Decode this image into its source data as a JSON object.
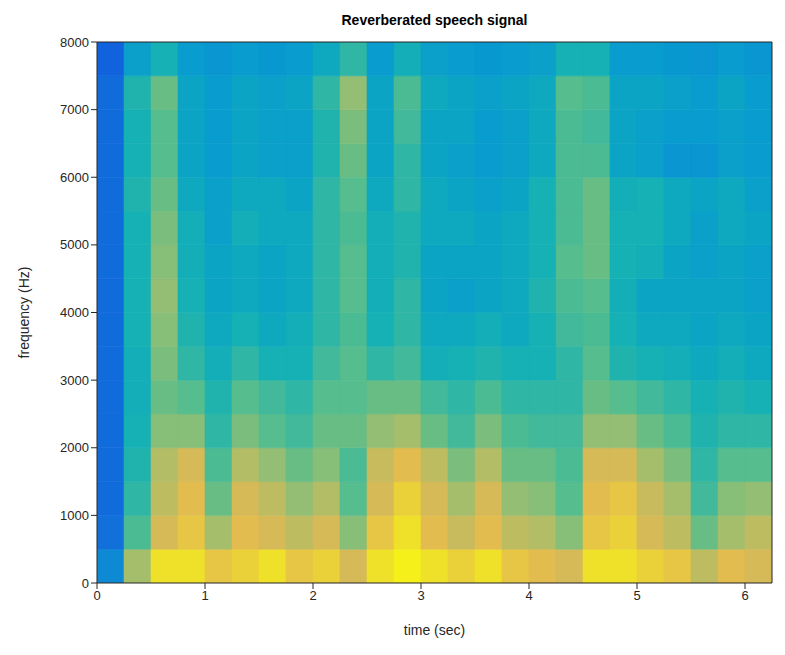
{
  "chart_data": {
    "type": "heatmap",
    "title": "Reverberated speech signal",
    "x_label": "time (sec)",
    "y_label": "frequency (Hz)",
    "xlim": [
      0,
      6.25
    ],
    "xticks": [
      0,
      1,
      2,
      3,
      4,
      5,
      6
    ],
    "ylim": [
      0,
      8000
    ],
    "yticks": [
      0,
      1000,
      2000,
      3000,
      4000,
      5000,
      6000,
      7000,
      8000
    ],
    "time_edges": [
      0,
      0.25,
      0.5,
      0.75,
      1,
      1.25,
      1.5,
      1.75,
      2,
      2.25,
      2.5,
      2.75,
      3,
      3.25,
      3.5,
      3.75,
      4,
      4.25,
      4.5,
      4.75,
      5,
      5.25,
      5.5,
      5.75,
      6,
      6.25
    ],
    "freq_edges": [
      0,
      500,
      1000,
      1500,
      2000,
      2500,
      3000,
      3500,
      4000,
      4500,
      5000,
      5500,
      6000,
      6500,
      7000,
      7500,
      8000
    ],
    "clim": [
      0,
      1
    ],
    "cells": [
      [
        0.3,
        0.75,
        0.95,
        0.95,
        0.9,
        0.92,
        0.95,
        0.9,
        0.92,
        0.85,
        0.95,
        0.98,
        0.95,
        0.92,
        0.95,
        0.9,
        0.88,
        0.85,
        0.95,
        0.95,
        0.92,
        0.9,
        0.8,
        0.88,
        0.85
      ],
      [
        0.2,
        0.6,
        0.85,
        0.9,
        0.75,
        0.88,
        0.85,
        0.8,
        0.85,
        0.7,
        0.9,
        0.95,
        0.88,
        0.82,
        0.88,
        0.8,
        0.78,
        0.7,
        0.9,
        0.92,
        0.85,
        0.8,
        0.65,
        0.75,
        0.8
      ],
      [
        0.18,
        0.55,
        0.8,
        0.88,
        0.65,
        0.85,
        0.8,
        0.72,
        0.78,
        0.62,
        0.85,
        0.92,
        0.85,
        0.75,
        0.85,
        0.72,
        0.7,
        0.62,
        0.88,
        0.9,
        0.82,
        0.75,
        0.58,
        0.7,
        0.72
      ],
      [
        0.18,
        0.52,
        0.78,
        0.85,
        0.6,
        0.78,
        0.72,
        0.65,
        0.7,
        0.6,
        0.82,
        0.88,
        0.8,
        0.68,
        0.78,
        0.65,
        0.65,
        0.6,
        0.85,
        0.85,
        0.75,
        0.68,
        0.55,
        0.62,
        0.62
      ],
      [
        0.18,
        0.5,
        0.7,
        0.7,
        0.55,
        0.68,
        0.62,
        0.58,
        0.65,
        0.65,
        0.72,
        0.75,
        0.65,
        0.58,
        0.68,
        0.6,
        0.58,
        0.58,
        0.72,
        0.72,
        0.65,
        0.6,
        0.52,
        0.55,
        0.55
      ],
      [
        0.18,
        0.48,
        0.65,
        0.62,
        0.52,
        0.62,
        0.58,
        0.55,
        0.62,
        0.62,
        0.65,
        0.65,
        0.58,
        0.55,
        0.6,
        0.55,
        0.55,
        0.55,
        0.65,
        0.62,
        0.58,
        0.55,
        0.5,
        0.52,
        0.5
      ],
      [
        0.18,
        0.48,
        0.68,
        0.55,
        0.48,
        0.55,
        0.5,
        0.5,
        0.58,
        0.62,
        0.55,
        0.58,
        0.48,
        0.5,
        0.52,
        0.5,
        0.5,
        0.55,
        0.62,
        0.52,
        0.5,
        0.48,
        0.45,
        0.48,
        0.45
      ],
      [
        0.18,
        0.5,
        0.7,
        0.52,
        0.45,
        0.5,
        0.45,
        0.48,
        0.55,
        0.6,
        0.5,
        0.55,
        0.45,
        0.45,
        0.48,
        0.45,
        0.5,
        0.58,
        0.6,
        0.5,
        0.45,
        0.45,
        0.42,
        0.45,
        0.42
      ],
      [
        0.18,
        0.5,
        0.72,
        0.5,
        0.42,
        0.45,
        0.42,
        0.45,
        0.55,
        0.62,
        0.48,
        0.55,
        0.42,
        0.4,
        0.42,
        0.45,
        0.52,
        0.6,
        0.62,
        0.48,
        0.42,
        0.42,
        0.42,
        0.42,
        0.4
      ],
      [
        0.18,
        0.5,
        0.7,
        0.48,
        0.42,
        0.45,
        0.42,
        0.45,
        0.55,
        0.62,
        0.48,
        0.52,
        0.42,
        0.42,
        0.42,
        0.45,
        0.5,
        0.62,
        0.65,
        0.5,
        0.48,
        0.42,
        0.4,
        0.42,
        0.4
      ],
      [
        0.18,
        0.5,
        0.68,
        0.48,
        0.4,
        0.48,
        0.45,
        0.45,
        0.55,
        0.6,
        0.48,
        0.52,
        0.45,
        0.45,
        0.42,
        0.45,
        0.5,
        0.6,
        0.65,
        0.5,
        0.5,
        0.45,
        0.4,
        0.45,
        0.42
      ],
      [
        0.18,
        0.52,
        0.65,
        0.45,
        0.4,
        0.45,
        0.45,
        0.42,
        0.55,
        0.62,
        0.45,
        0.55,
        0.45,
        0.42,
        0.4,
        0.42,
        0.5,
        0.6,
        0.65,
        0.48,
        0.5,
        0.45,
        0.42,
        0.45,
        0.4
      ],
      [
        0.18,
        0.5,
        0.62,
        0.42,
        0.38,
        0.42,
        0.4,
        0.4,
        0.52,
        0.65,
        0.42,
        0.55,
        0.42,
        0.4,
        0.38,
        0.4,
        0.45,
        0.6,
        0.6,
        0.42,
        0.4,
        0.35,
        0.35,
        0.4,
        0.38
      ],
      [
        0.18,
        0.5,
        0.62,
        0.42,
        0.38,
        0.42,
        0.4,
        0.4,
        0.52,
        0.68,
        0.42,
        0.58,
        0.42,
        0.42,
        0.38,
        0.4,
        0.45,
        0.6,
        0.58,
        0.42,
        0.4,
        0.38,
        0.38,
        0.4,
        0.38
      ],
      [
        0.18,
        0.52,
        0.65,
        0.42,
        0.38,
        0.42,
        0.4,
        0.42,
        0.55,
        0.72,
        0.42,
        0.6,
        0.45,
        0.42,
        0.4,
        0.42,
        0.45,
        0.62,
        0.6,
        0.42,
        0.42,
        0.4,
        0.38,
        0.42,
        0.38
      ],
      [
        0.15,
        0.4,
        0.5,
        0.38,
        0.35,
        0.38,
        0.36,
        0.38,
        0.45,
        0.55,
        0.38,
        0.48,
        0.4,
        0.38,
        0.36,
        0.38,
        0.4,
        0.5,
        0.5,
        0.38,
        0.38,
        0.36,
        0.35,
        0.38,
        0.35
      ]
    ]
  }
}
